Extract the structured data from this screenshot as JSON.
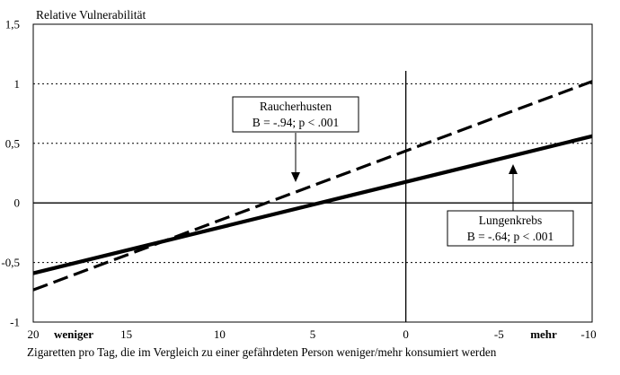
{
  "chart_data": {
    "type": "line",
    "title": "",
    "ylabel": "Relative Vulnerabilität",
    "xlabel": "Zigaretten pro Tag, die im Vergleich zu einer gefährdeten Person weniger/mehr konsumiert werden",
    "x_side_labels": {
      "left": "weniger",
      "right": "mehr"
    },
    "xlim": [
      20,
      -10
    ],
    "ylim": [
      -1,
      1.5
    ],
    "x_ticks": [
      20,
      15,
      10,
      5,
      0,
      -5,
      -10
    ],
    "x_tick_labels": [
      "20",
      "15",
      "10",
      "5",
      "0",
      "-5",
      "-10"
    ],
    "y_ticks": [
      -1,
      -0.5,
      0,
      0.5,
      1,
      1.5
    ],
    "y_tick_labels": [
      "-1",
      "-0,5",
      "0",
      "0,5",
      "1",
      "1,5"
    ],
    "grid": "horizontal dotted at -0.5, 0.5, 1",
    "series": [
      {
        "name": "Raucherhusten",
        "stat": "B = -.94; p < .001",
        "style": "dashed",
        "x": [
          20,
          -10
        ],
        "y": [
          -0.73,
          1.02
        ]
      },
      {
        "name": "Lungenkrebs",
        "stat": "B = -.64; p < .001",
        "style": "solid",
        "x": [
          20,
          -10
        ],
        "y": [
          -0.59,
          0.56
        ]
      }
    ],
    "annotations": [
      {
        "target": "Raucherhusten",
        "arrow_to": [
          6,
          0.2
        ],
        "box_anchor": "above-left"
      },
      {
        "target": "Lungenkrebs",
        "arrow_to": [
          -5.8,
          0.35
        ],
        "box_anchor": "below-right"
      }
    ]
  }
}
